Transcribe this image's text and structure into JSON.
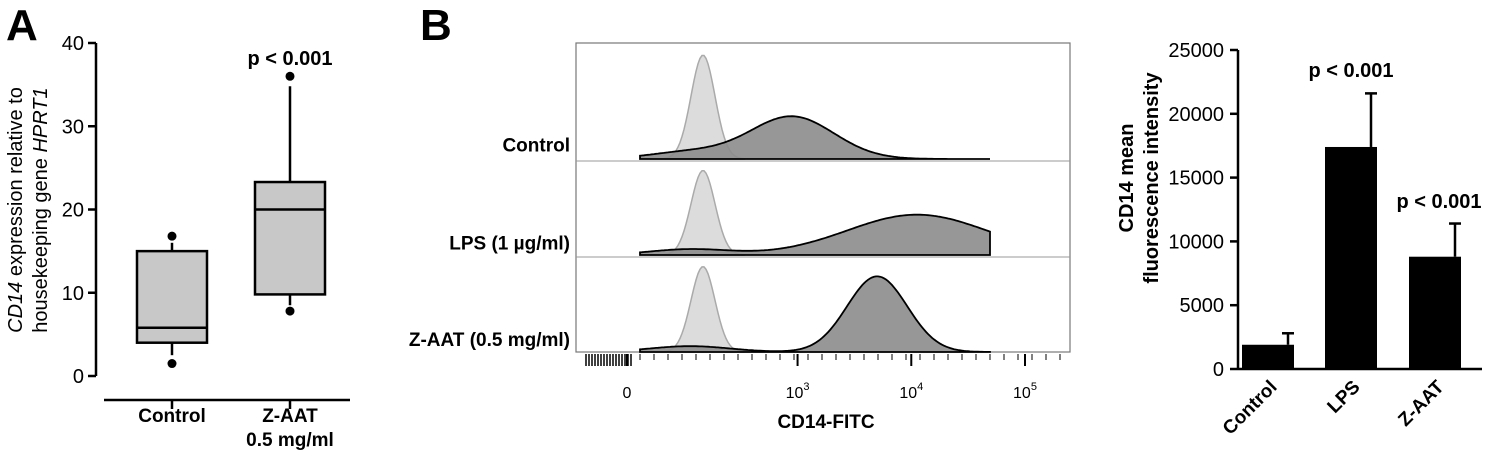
{
  "panels": {
    "a": {
      "letter": "A"
    },
    "b": {
      "letter": "B"
    }
  },
  "chart_data": [
    {
      "type": "box",
      "ylabel_line1_italic": "CD14",
      "ylabel_line1_rest": " expression relative to",
      "ylabel_line2_prefix": "housekeeping gene ",
      "ylabel_line2_italic": "HPRT1",
      "ylim": [
        0,
        40
      ],
      "yticks": [
        "0",
        "10",
        "20",
        "30",
        "40"
      ],
      "categories": [
        {
          "line1": "Control",
          "line2": ""
        },
        {
          "line1": "Z-AAT",
          "line2": "0.5 mg/ml"
        }
      ],
      "boxes": [
        {
          "whisker_low": 2.5,
          "q1": 4.0,
          "median": 5.8,
          "q3": 15.0,
          "whisker_high": 16.0,
          "outliers": [
            1.5,
            16.8
          ]
        },
        {
          "whisker_low": 8.5,
          "q1": 9.8,
          "median": 20.0,
          "q3": 23.3,
          "whisker_high": 34.8,
          "outliers": [
            7.8,
            36.0
          ]
        }
      ],
      "annotations": [
        "",
        "p < 0.001"
      ],
      "fill": "#c8c8c8"
    },
    {
      "type": "histogram",
      "xlabel": "CD14-FITC",
      "xtick_labels": [
        {
          "base": "0",
          "exp": ""
        },
        {
          "base": "10",
          "exp": "3"
        },
        {
          "base": "10",
          "exp": "4"
        },
        {
          "base": "10",
          "exp": "5"
        }
      ],
      "rows": [
        {
          "label": "Control",
          "stain_peak_log": 2.95
        },
        {
          "label": "LPS (1 µg/ml)",
          "stain_peak_log": 4.05
        },
        {
          "label": "Z-AAT (0.5 mg/ml)",
          "stain_peak_log": 3.7
        }
      ],
      "isotype_color": "#dcdcdc",
      "stain_color": "#8c8c8c"
    },
    {
      "type": "bar",
      "ylabel_line1": "CD14 mean",
      "ylabel_line2": "fluorescence intensity",
      "ylim": [
        0,
        25000
      ],
      "yticks": [
        "0",
        "5000",
        "10000",
        "15000",
        "20000",
        "25000"
      ],
      "categories": [
        "Control",
        "LPS",
        "Z-AAT"
      ],
      "values": [
        1900,
        17400,
        8800
      ],
      "errors": [
        900,
        4200,
        2600
      ],
      "annotations": [
        "",
        "p < 0.001",
        "p < 0.001"
      ],
      "color": "#000000"
    }
  ]
}
